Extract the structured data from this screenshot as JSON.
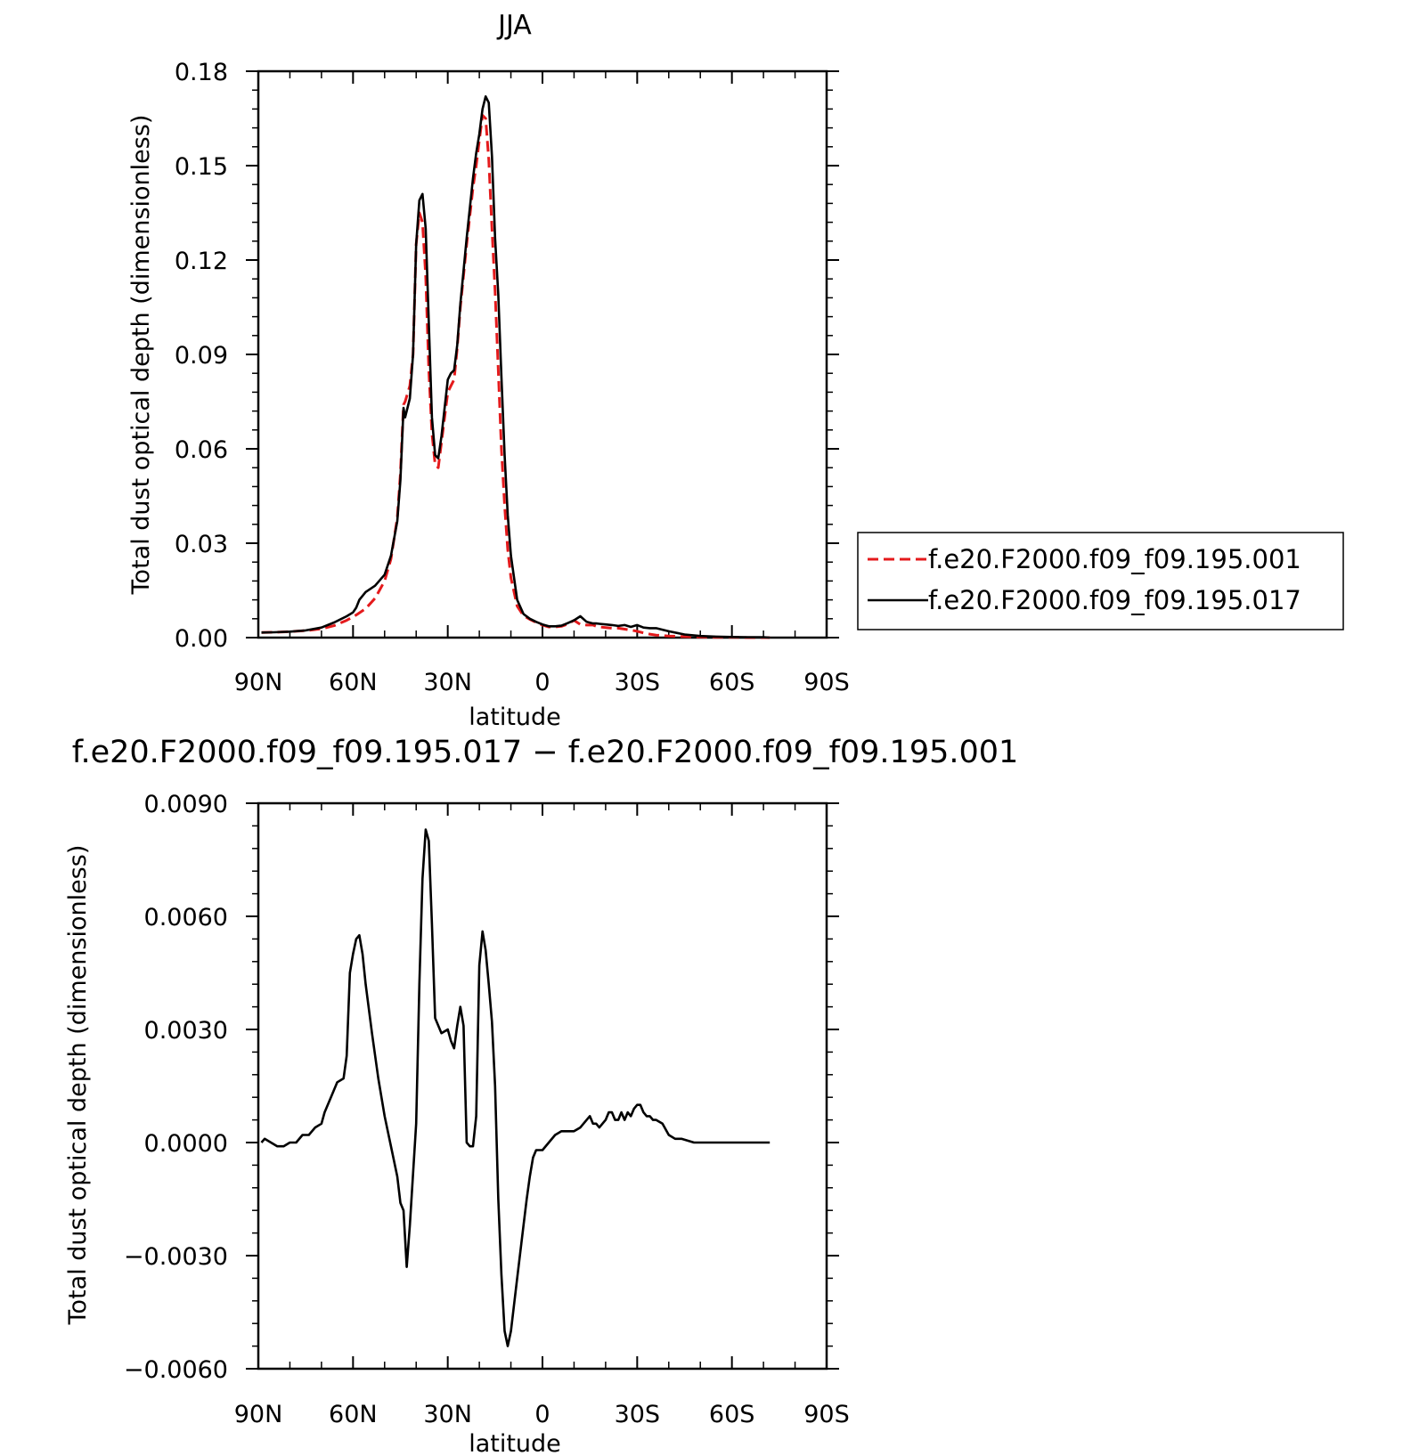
{
  "chart_data": [
    {
      "type": "line",
      "title": "JJA",
      "xlabel": "latitude",
      "ylabel": "Total dust optical depth (dimensionless)",
      "xlim": [
        90,
        -90
      ],
      "ylim": [
        0.0,
        0.18
      ],
      "x_ticks": [
        90,
        60,
        30,
        0,
        -30,
        -60,
        -90
      ],
      "x_tick_labels": [
        "90N",
        "60N",
        "30N",
        "0",
        "30S",
        "60S",
        "90S"
      ],
      "y_ticks": [
        0.0,
        0.03,
        0.06,
        0.09,
        0.12,
        0.15,
        0.18
      ],
      "y_tick_labels": [
        "0.00",
        "0.03",
        "0.06",
        "0.09",
        "0.12",
        "0.15",
        "0.18"
      ],
      "legend_position": "right",
      "series": [
        {
          "name": "f.e20.F2000.f09_f09.195.001",
          "color": "#e41a1c",
          "dash": "dashed",
          "x": [
            89,
            85,
            80,
            75,
            70,
            66,
            62,
            59,
            56,
            53,
            50,
            48,
            46,
            45,
            44,
            43.5,
            42,
            41,
            40,
            39,
            38,
            37,
            36,
            35,
            34,
            33,
            32,
            30,
            29,
            28,
            27,
            26,
            24,
            22,
            21,
            20,
            19,
            18,
            17,
            16,
            15,
            14,
            13,
            12,
            11,
            10,
            8,
            6,
            4,
            2,
            0,
            -2,
            -4,
            -6,
            -8,
            -10,
            -12,
            -14,
            -16,
            -17,
            -18,
            -20,
            -22,
            -24,
            -26,
            -28,
            -30,
            -32,
            -34,
            -36,
            -40,
            -45,
            -50,
            -55,
            -60,
            -65,
            -70,
            -72
          ],
          "values": [
            0.0016,
            0.0017,
            0.0019,
            0.0022,
            0.0028,
            0.0038,
            0.0055,
            0.0072,
            0.0092,
            0.0125,
            0.018,
            0.025,
            0.038,
            0.052,
            0.074,
            0.075,
            0.08,
            0.09,
            0.125,
            0.135,
            0.132,
            0.115,
            0.085,
            0.065,
            0.055,
            0.054,
            0.062,
            0.078,
            0.08,
            0.082,
            0.092,
            0.105,
            0.125,
            0.143,
            0.15,
            0.158,
            0.166,
            0.165,
            0.152,
            0.13,
            0.11,
            0.085,
            0.06,
            0.042,
            0.028,
            0.019,
            0.01,
            0.007,
            0.0058,
            0.0048,
            0.004,
            0.0034,
            0.0034,
            0.0036,
            0.0043,
            0.0055,
            0.0042,
            0.004,
            0.004,
            0.0036,
            0.0034,
            0.0032,
            0.003,
            0.003,
            0.0027,
            0.0024,
            0.002,
            0.0015,
            0.0011,
            0.0008,
            0.0005,
            0.0003,
            0.0002,
            0.0001,
            0.0001,
            0.0,
            0.0,
            0.0
          ]
        },
        {
          "name": "f.e20.F2000.f09_f09.195.017",
          "color": "#000000",
          "dash": "solid",
          "x": [
            89,
            85,
            80,
            75,
            70,
            66,
            62,
            60,
            59,
            58,
            56,
            53,
            50,
            48,
            46,
            45,
            44,
            43.5,
            42,
            41,
            40,
            39,
            38,
            37,
            36,
            35,
            34,
            33,
            32,
            30,
            29,
            28,
            27,
            26,
            24,
            22,
            21,
            20,
            19,
            18,
            17,
            16,
            15,
            14,
            13,
            12,
            11,
            10,
            8,
            6,
            4,
            2,
            0,
            -2,
            -4,
            -6,
            -8,
            -10,
            -12,
            -14,
            -16,
            -17,
            -18,
            -20,
            -22,
            -24,
            -26,
            -28,
            -30,
            -32,
            -34,
            -36,
            -40,
            -45,
            -50,
            -55,
            -60,
            -65,
            -70,
            -72
          ],
          "values": [
            0.0016,
            0.0017,
            0.0019,
            0.0023,
            0.0032,
            0.0048,
            0.0068,
            0.008,
            0.0095,
            0.012,
            0.0145,
            0.0165,
            0.02,
            0.026,
            0.037,
            0.05,
            0.073,
            0.07,
            0.076,
            0.09,
            0.125,
            0.139,
            0.141,
            0.13,
            0.1,
            0.07,
            0.058,
            0.057,
            0.064,
            0.082,
            0.084,
            0.085,
            0.093,
            0.106,
            0.127,
            0.146,
            0.154,
            0.16,
            0.168,
            0.172,
            0.17,
            0.153,
            0.127,
            0.109,
            0.083,
            0.058,
            0.039,
            0.026,
            0.012,
            0.0075,
            0.006,
            0.005,
            0.0042,
            0.0036,
            0.0036,
            0.0038,
            0.0046,
            0.0055,
            0.0068,
            0.005,
            0.0045,
            0.0045,
            0.0044,
            0.0042,
            0.004,
            0.0037,
            0.004,
            0.0034,
            0.004,
            0.0032,
            0.003,
            0.003,
            0.002,
            0.001,
            0.0005,
            0.0003,
            0.0002,
            0.0001,
            0.0001,
            0.0
          ]
        }
      ]
    },
    {
      "type": "line",
      "title": "f.e20.F2000.f09_f09.195.017 − f.e20.F2000.f09_f09.195.001",
      "xlabel": "latitude",
      "ylabel": "Total dust optical depth (dimensionless)",
      "xlim": [
        90,
        -90
      ],
      "ylim": [
        -0.006,
        0.009
      ],
      "x_ticks": [
        90,
        60,
        30,
        0,
        -30,
        -60,
        -90
      ],
      "x_tick_labels": [
        "90N",
        "60N",
        "30N",
        "0",
        "30S",
        "60S",
        "90S"
      ],
      "y_ticks": [
        -0.006,
        -0.003,
        0.0,
        0.003,
        0.006,
        0.009
      ],
      "y_tick_labels": [
        "−0.0060",
        "−0.0030",
        "0.0000",
        "0.0030",
        "0.0060",
        "0.0090"
      ],
      "series": [
        {
          "color": "#000000",
          "dash": "solid",
          "x": [
            89,
            88,
            86,
            84,
            82,
            80,
            78,
            76,
            74,
            72,
            70,
            69,
            67,
            65,
            63,
            62,
            61,
            60,
            59,
            58,
            57,
            56,
            54,
            52,
            50,
            48,
            46,
            45,
            44,
            43,
            42,
            40,
            39,
            38,
            37,
            36,
            35,
            34,
            32,
            30,
            29,
            28,
            27,
            26,
            25,
            24,
            23,
            22,
            21,
            20,
            19,
            18,
            17,
            16,
            15,
            14,
            13,
            12,
            11,
            10,
            9,
            8,
            6,
            5,
            4,
            3,
            2,
            0,
            -2,
            -4,
            -6,
            -8,
            -10,
            -12,
            -14,
            -15,
            -16,
            -17,
            -18,
            -20,
            -21,
            -22,
            -23,
            -24,
            -25,
            -26,
            -27,
            -28,
            -29,
            -30,
            -31,
            -32,
            -33,
            -34,
            -35,
            -36,
            -38,
            -40,
            -42,
            -44,
            -48,
            -55,
            -65,
            -72
          ],
          "values": [
            0.0,
            0.0001,
            0.0,
            -0.0001,
            -0.0001,
            0.0,
            0.0,
            0.0002,
            0.0002,
            0.0004,
            0.0005,
            0.0008,
            0.0012,
            0.0016,
            0.0017,
            0.0023,
            0.0045,
            0.005,
            0.0054,
            0.0055,
            0.005,
            0.0042,
            0.0029,
            0.0017,
            0.0007,
            -0.0001,
            -0.0009,
            -0.0016,
            -0.0018,
            -0.0033,
            -0.0022,
            0.0005,
            0.0042,
            0.007,
            0.0083,
            0.008,
            0.0058,
            0.0033,
            0.0029,
            0.003,
            0.0027,
            0.0025,
            0.0031,
            0.0036,
            0.0031,
            0.0,
            -0.0001,
            -0.0001,
            0.0007,
            0.0047,
            0.0056,
            0.0051,
            0.0042,
            0.0032,
            0.0015,
            -0.0015,
            -0.0035,
            -0.005,
            -0.0054,
            -0.005,
            -0.0043,
            -0.0036,
            -0.0022,
            -0.0015,
            -0.0009,
            -0.0004,
            -0.0002,
            -0.0002,
            0.0,
            0.0002,
            0.0003,
            0.0003,
            0.0003,
            0.0004,
            0.0006,
            0.0007,
            0.0005,
            0.0005,
            0.0004,
            0.0006,
            0.0008,
            0.0008,
            0.0006,
            0.0006,
            0.0008,
            0.0006,
            0.0008,
            0.0007,
            0.0009,
            0.001,
            0.001,
            0.0008,
            0.0007,
            0.0007,
            0.0006,
            0.0006,
            0.0005,
            0.0002,
            0.0001,
            0.0001,
            0.0,
            0.0,
            0.0,
            0.0
          ]
        }
      ]
    }
  ]
}
